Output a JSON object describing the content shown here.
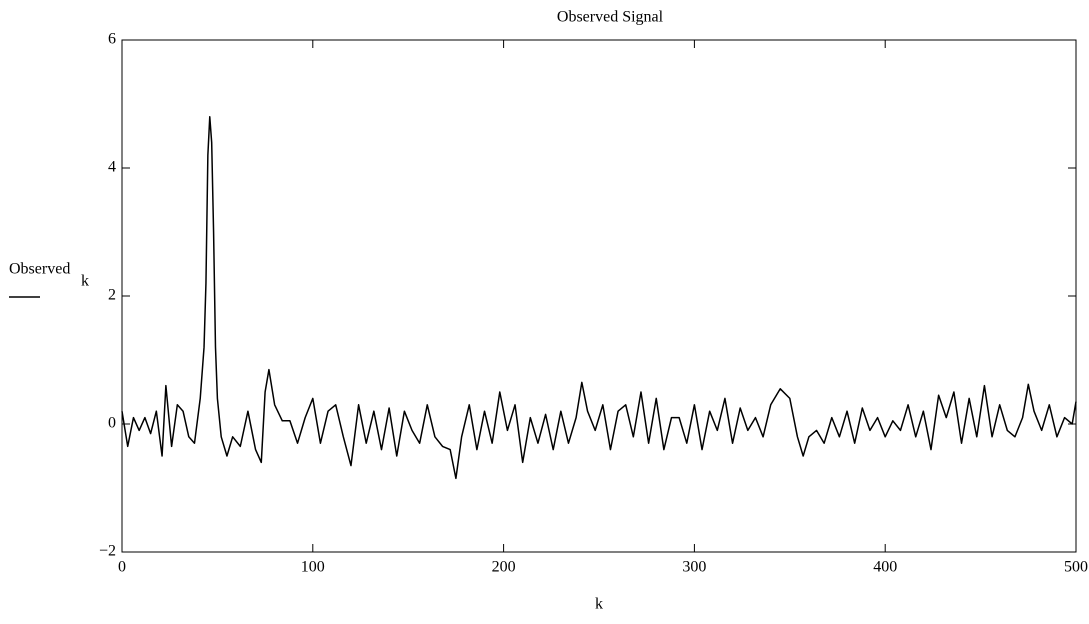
{
  "chart_data": {
    "type": "line",
    "title": "Observed Signal",
    "x_label": "k",
    "y_label": "Observed",
    "y_label_sub": "k",
    "x": [
      0,
      3,
      6,
      9,
      12,
      15,
      18,
      21,
      23,
      26,
      29,
      32,
      35,
      38,
      41,
      43,
      44,
      45,
      46,
      47,
      48,
      49,
      50,
      52,
      55,
      58,
      62,
      66,
      70,
      73,
      75,
      77,
      80,
      84,
      88,
      92,
      96,
      100,
      104,
      108,
      112,
      116,
      120,
      124,
      128,
      132,
      136,
      140,
      144,
      148,
      152,
      156,
      160,
      164,
      168,
      172,
      175,
      178,
      182,
      186,
      190,
      194,
      198,
      202,
      206,
      210,
      214,
      218,
      222,
      226,
      230,
      234,
      238,
      241,
      244,
      248,
      252,
      256,
      260,
      264,
      268,
      272,
      276,
      280,
      284,
      288,
      292,
      296,
      300,
      304,
      308,
      312,
      316,
      320,
      324,
      328,
      332,
      336,
      340,
      345,
      350,
      354,
      357,
      360,
      364,
      368,
      372,
      376,
      380,
      384,
      388,
      392,
      396,
      400,
      404,
      408,
      412,
      416,
      420,
      424,
      428,
      432,
      436,
      440,
      444,
      448,
      452,
      456,
      460,
      464,
      468,
      472,
      475,
      478,
      482,
      486,
      490,
      494,
      498,
      500
    ],
    "series": [
      {
        "color": "#000000",
        "values": [
          0.2,
          -0.35,
          0.1,
          -0.1,
          0.1,
          -0.15,
          0.2,
          -0.5,
          0.6,
          -0.35,
          0.3,
          0.2,
          -0.2,
          -0.3,
          0.4,
          1.2,
          2.2,
          4.2,
          4.8,
          4.4,
          3.0,
          1.2,
          0.4,
          -0.2,
          -0.5,
          -0.2,
          -0.35,
          0.2,
          -0.4,
          -0.6,
          0.5,
          0.85,
          0.3,
          0.05,
          0.05,
          -0.3,
          0.1,
          0.4,
          -0.3,
          0.2,
          0.3,
          -0.2,
          -0.65,
          0.3,
          -0.3,
          0.2,
          -0.4,
          0.25,
          -0.5,
          0.2,
          -0.1,
          -0.3,
          0.3,
          -0.2,
          -0.35,
          -0.4,
          -0.85,
          -0.2,
          0.3,
          -0.4,
          0.2,
          -0.3,
          0.5,
          -0.1,
          0.3,
          -0.6,
          0.1,
          -0.3,
          0.15,
          -0.4,
          0.2,
          -0.3,
          0.1,
          0.65,
          0.2,
          -0.1,
          0.3,
          -0.4,
          0.2,
          0.3,
          -0.2,
          0.5,
          -0.3,
          0.4,
          -0.4,
          0.1,
          0.1,
          -0.3,
          0.3,
          -0.4,
          0.2,
          -0.1,
          0.4,
          -0.3,
          0.25,
          -0.1,
          0.1,
          -0.2,
          0.3,
          0.55,
          0.4,
          -0.2,
          -0.5,
          -0.2,
          -0.1,
          -0.3,
          0.1,
          -0.2,
          0.2,
          -0.3,
          0.25,
          -0.1,
          0.1,
          -0.2,
          0.05,
          -0.1,
          0.3,
          -0.2,
          0.2,
          -0.4,
          0.45,
          0.1,
          0.5,
          -0.3,
          0.4,
          -0.2,
          0.6,
          -0.2,
          0.3,
          -0.1,
          -0.2,
          0.1,
          0.62,
          0.2,
          -0.1,
          0.3,
          -0.2,
          0.1,
          0.0,
          0.35
        ]
      }
    ],
    "xlim": [
      0,
      500
    ],
    "ylim": [
      -2,
      6
    ],
    "xticks": [
      0,
      100,
      200,
      300,
      400,
      500
    ],
    "yticks": [
      {
        "value": -2,
        "label": "−2"
      },
      0,
      2,
      4,
      6
    ]
  }
}
